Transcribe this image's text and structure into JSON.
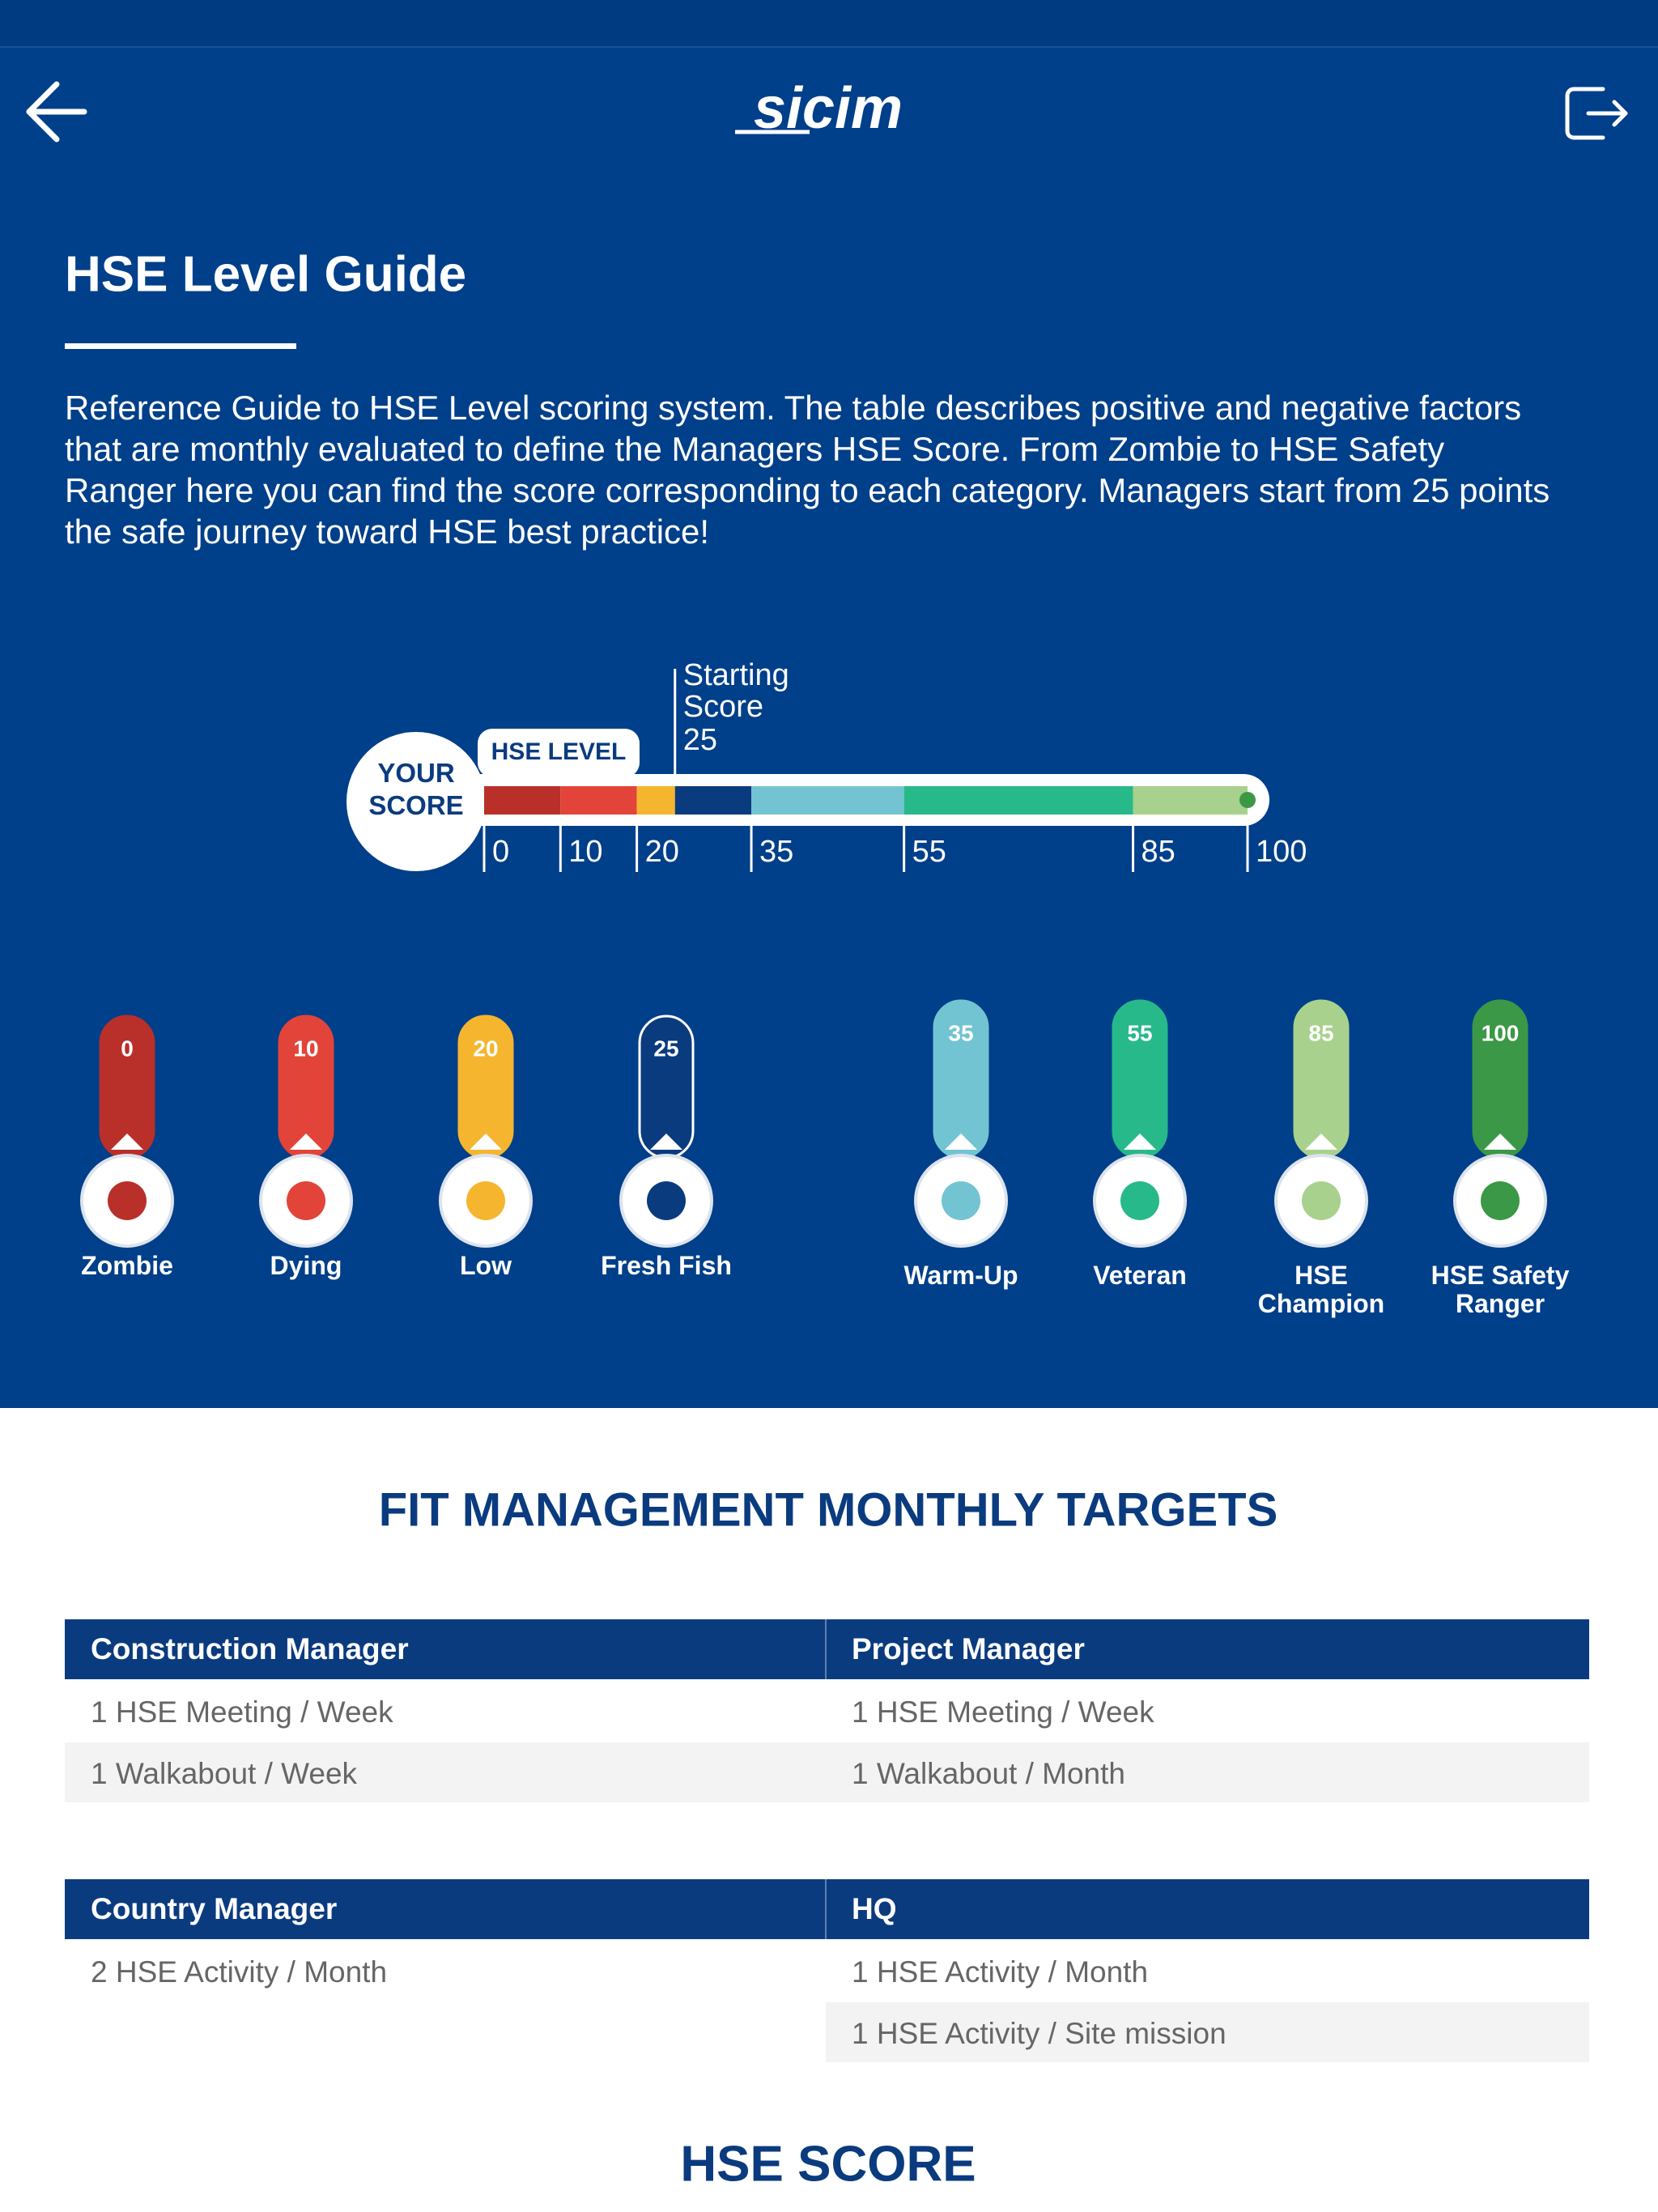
{
  "header": {
    "logo": "sicim"
  },
  "guide": {
    "title": "HSE Level Guide",
    "description": "Reference Guide to HSE Level scoring system. The table describes positive and negative factors that are monthly evaluated to define the Managers HSE Score. From Zombie to HSE Safety Ranger here you can find the score corresponding to each category. Managers start from 25 points the safe journey toward HSE best practice!"
  },
  "scale": {
    "your_score": "YOUR SCORE",
    "hse_level": "HSE LEVEL",
    "start_label": "Starting Score",
    "start": 25,
    "ticks": [
      0,
      10,
      20,
      35,
      55,
      85,
      100
    ]
  },
  "levels": [
    {
      "score": 0,
      "name": "Zombie",
      "color": "#b92f2a"
    },
    {
      "score": 10,
      "name": "Dying",
      "color": "#e2443a"
    },
    {
      "score": 20,
      "name": "Low",
      "color": "#f6b52e"
    },
    {
      "score": 25,
      "name": "Fresh Fish",
      "color": "#0b3b7f"
    },
    {
      "score": 35,
      "name": "Warm-Up",
      "color": "#72c4d2"
    },
    {
      "score": 55,
      "name": "Veteran",
      "color": "#27b98a"
    },
    {
      "score": 85,
      "name": "HSE Champion",
      "color": "#a8d18d"
    },
    {
      "score": 100,
      "name": "HSE Safety Ranger",
      "color": "#3b9846"
    }
  ],
  "targets": {
    "title": "FIT MANAGEMENT MONTHLY TARGETS",
    "tables": [
      [
        {
          "header": "Construction Manager",
          "items": [
            "1 HSE Meeting / Week",
            "1 Walkabout / Week"
          ]
        },
        {
          "header": "Project Manager",
          "items": [
            "1 HSE Meeting / Week",
            "1 Walkabout / Month"
          ]
        }
      ],
      [
        {
          "header": "Country Manager",
          "items": [
            "2 HSE Activity / Month"
          ]
        },
        {
          "header": "HQ",
          "items": [
            "1 HSE Activity / Month",
            "1 HSE Activity / Site mission"
          ]
        }
      ]
    ]
  },
  "score_section": {
    "title": "HSE SCORE"
  }
}
